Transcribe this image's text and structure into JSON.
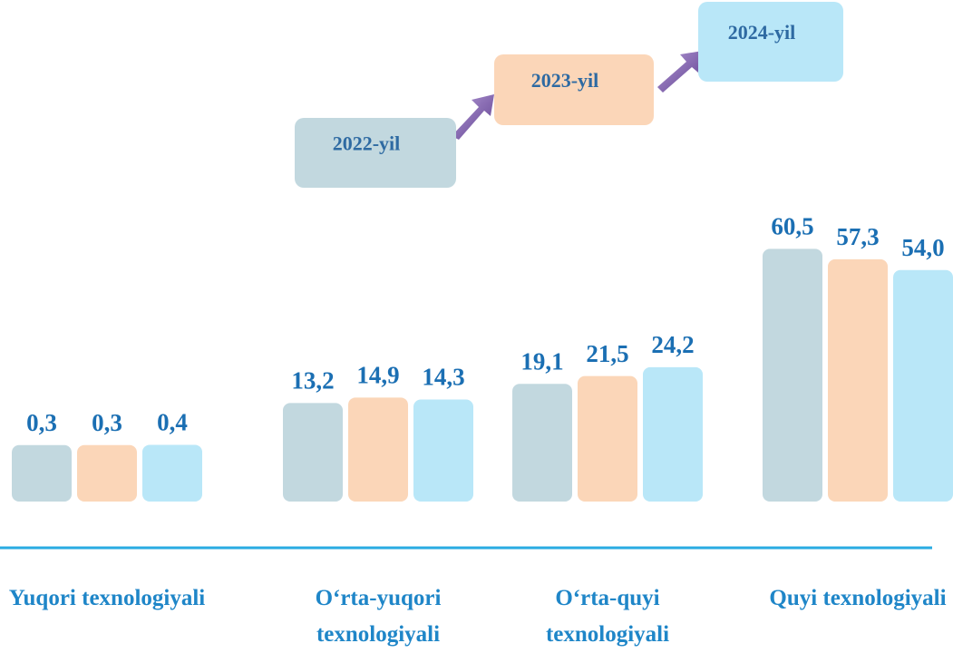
{
  "chart_data": {
    "type": "bar",
    "categories": [
      "Yuqori texnologiyali",
      "O‘rta-yuqori texnologiyali",
      "O‘rta-quyi texnologiyali",
      "Quyi texnologiyali"
    ],
    "series": [
      {
        "name": "2022-yil",
        "color": "#c2d8df",
        "values": [
          0.3,
          13.2,
          19.1,
          60.5
        ],
        "value_labels": [
          "0,3",
          "13,2",
          "19,1",
          "60,5"
        ]
      },
      {
        "name": "2023-yil",
        "color": "#fbd6b8",
        "values": [
          0.3,
          14.9,
          21.5,
          57.3
        ],
        "value_labels": [
          "0,3",
          "14,9",
          "21,5",
          "57,3"
        ]
      },
      {
        "name": "2024-yil",
        "color": "#b9e7f8",
        "values": [
          0.4,
          14.3,
          24.2,
          54.0
        ],
        "value_labels": [
          "0,4",
          "14,3",
          "24,2",
          "54,0"
        ]
      }
    ],
    "ylim": [
      -17,
      62
    ]
  }
}
